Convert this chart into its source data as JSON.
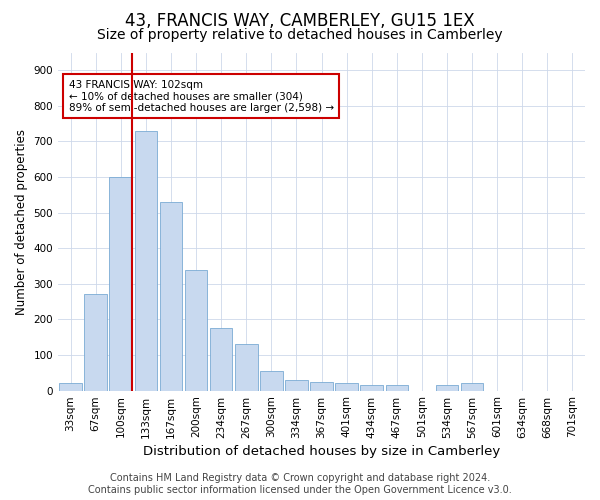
{
  "title1": "43, FRANCIS WAY, CAMBERLEY, GU15 1EX",
  "title2": "Size of property relative to detached houses in Camberley",
  "xlabel": "Distribution of detached houses by size in Camberley",
  "ylabel": "Number of detached properties",
  "categories": [
    "33sqm",
    "67sqm",
    "100sqm",
    "133sqm",
    "167sqm",
    "200sqm",
    "234sqm",
    "267sqm",
    "300sqm",
    "334sqm",
    "367sqm",
    "401sqm",
    "434sqm",
    "467sqm",
    "501sqm",
    "534sqm",
    "567sqm",
    "601sqm",
    "634sqm",
    "668sqm",
    "701sqm"
  ],
  "values": [
    20,
    270,
    600,
    730,
    530,
    340,
    175,
    130,
    55,
    30,
    25,
    20,
    15,
    15,
    0,
    15,
    20,
    0,
    0,
    0,
    0
  ],
  "bar_color": "#c8d9ef",
  "bar_edge_color": "#7aabd4",
  "property_line_color": "#cc0000",
  "property_line_xindex": 2,
  "annotation_text": "43 FRANCIS WAY: 102sqm\n← 10% of detached houses are smaller (304)\n89% of semi-detached houses are larger (2,598) →",
  "annotation_box_color": "#cc0000",
  "ylim": [
    0,
    950
  ],
  "yticks": [
    0,
    100,
    200,
    300,
    400,
    500,
    600,
    700,
    800,
    900
  ],
  "footer_line1": "Contains HM Land Registry data © Crown copyright and database right 2024.",
  "footer_line2": "Contains public sector information licensed under the Open Government Licence v3.0.",
  "bg_color": "#ffffff",
  "grid_color": "#cdd8ea",
  "title1_fontsize": 12,
  "title2_fontsize": 10,
  "xlabel_fontsize": 9.5,
  "ylabel_fontsize": 8.5,
  "tick_fontsize": 7.5,
  "footer_fontsize": 7,
  "annotation_fontsize": 7.5
}
